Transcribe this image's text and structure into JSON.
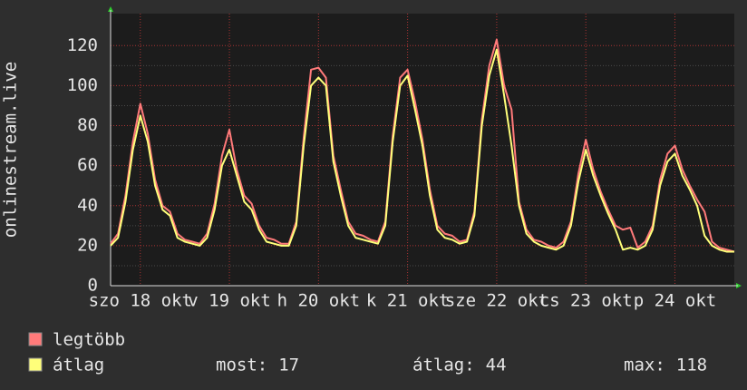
{
  "chart_data": {
    "type": "line",
    "ylabel": "onlinestream.live",
    "x": [
      0,
      2,
      4,
      6,
      8,
      10,
      12,
      14,
      16,
      18,
      20,
      22,
      24,
      26,
      28,
      30,
      32,
      34,
      36,
      38,
      40,
      42,
      44,
      46,
      48,
      50,
      52,
      54,
      56,
      58,
      60,
      62,
      64,
      66,
      68,
      70,
      72,
      74,
      76,
      78,
      80,
      82,
      84,
      86,
      88,
      90,
      92,
      94,
      96,
      98,
      100,
      102,
      104,
      106,
      108,
      110,
      112,
      114,
      116,
      118,
      120,
      122,
      124,
      126,
      128,
      130,
      132,
      134,
      136,
      138,
      140,
      142,
      144,
      146,
      148,
      150,
      152,
      154,
      156,
      158,
      160,
      162,
      164,
      166,
      168
    ],
    "xlim": [
      0,
      168
    ],
    "xticks": [
      {
        "value": 8,
        "label": "szo 18 okt"
      },
      {
        "value": 32,
        "label": "v 19 okt"
      },
      {
        "value": 56,
        "label": "h 20 okt"
      },
      {
        "value": 80,
        "label": "k 21 okt"
      },
      {
        "value": 104,
        "label": "sze 22 okt"
      },
      {
        "value": 128,
        "label": "cs 23 okt"
      },
      {
        "value": 152,
        "label": "p 24 okt"
      }
    ],
    "ylim": [
      0,
      136
    ],
    "yticks": [
      0,
      20,
      40,
      60,
      80,
      100,
      120
    ],
    "grid": true,
    "series": [
      {
        "name": "legtöbb",
        "color": "#ff7a7a",
        "values": [
          21,
          26,
          45,
          72,
          91,
          76,
          53,
          40,
          37,
          26,
          23,
          22,
          21,
          26,
          41,
          65,
          78,
          58,
          45,
          41,
          30,
          24,
          23,
          21,
          21,
          32,
          74,
          108,
          109,
          104,
          65,
          48,
          32,
          26,
          25,
          23,
          22,
          32,
          75,
          104,
          108,
          92,
          73,
          48,
          30,
          26,
          25,
          22,
          23,
          37,
          83,
          110,
          123,
          100,
          88,
          42,
          28,
          23,
          22,
          20,
          19,
          22,
          32,
          56,
          73,
          58,
          47,
          38,
          30,
          28,
          29,
          19,
          22,
          30,
          53,
          66,
          70,
          58,
          50,
          43,
          37,
          22,
          19,
          18,
          17
        ]
      },
      {
        "name": "átlag",
        "color": "#ffff7a",
        "values": [
          20,
          24,
          42,
          68,
          85,
          72,
          50,
          38,
          35,
          24,
          22,
          21,
          20,
          24,
          38,
          60,
          68,
          55,
          42,
          38,
          28,
          22,
          21,
          20,
          20,
          30,
          70,
          100,
          104,
          100,
          62,
          45,
          30,
          24,
          23,
          22,
          21,
          30,
          72,
          100,
          105,
          88,
          70,
          45,
          28,
          24,
          23,
          21,
          22,
          35,
          80,
          105,
          118,
          95,
          70,
          40,
          26,
          22,
          20,
          19,
          18,
          20,
          30,
          52,
          68,
          55,
          45,
          36,
          28,
          18,
          19,
          18,
          20,
          28,
          50,
          62,
          66,
          55,
          48,
          40,
          25,
          20,
          18,
          17,
          17
        ]
      }
    ],
    "stats": [
      {
        "label": "most:",
        "value": 17
      },
      {
        "label": "átlag:",
        "value": 44
      },
      {
        "label": "max:",
        "value": 118
      }
    ]
  }
}
